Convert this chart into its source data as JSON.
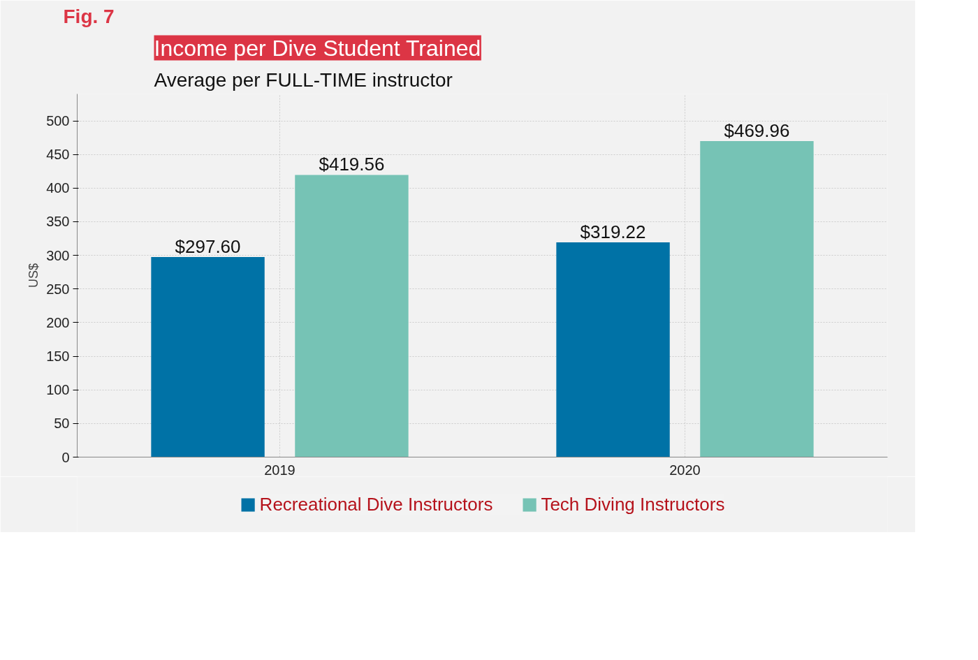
{
  "chart_data": {
    "type": "bar",
    "title": "Income per Dive Student Trained",
    "subtitle": "Average per FULL-TIME instructor",
    "ylabel": "US$",
    "annotations": [
      "Fig. 7"
    ],
    "categories": [
      "2019",
      "2020"
    ],
    "series": [
      {
        "name": "Recreational Dive Instructors",
        "color": "#0072a6",
        "values": [
          297.6,
          319.22
        ],
        "value_labels": [
          "$297.60",
          "$319.22"
        ]
      },
      {
        "name": "Tech Diving Instructors",
        "color": "#76c3b5",
        "values": [
          419.56,
          469.96
        ],
        "value_labels": [
          "$419.56",
          "$469.96"
        ]
      }
    ],
    "ylim": [
      0,
      540
    ],
    "yticks": [
      0,
      50,
      100,
      150,
      200,
      250,
      300,
      350,
      400,
      450,
      500
    ],
    "grid": true,
    "legend": "bottom"
  }
}
